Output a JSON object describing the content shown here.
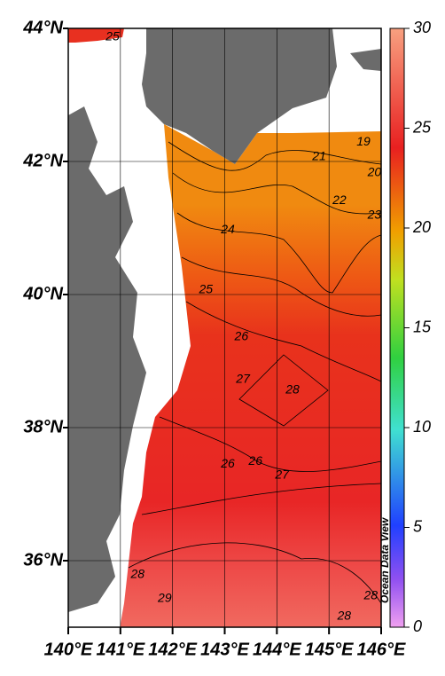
{
  "chart_data": {
    "type": "map",
    "xlim": [
      140,
      146
    ],
    "ylim": [
      35,
      44
    ],
    "xticks": [
      {
        "value": 140,
        "label": "140°E"
      },
      {
        "value": 141,
        "label": "141°E"
      },
      {
        "value": 142,
        "label": "142°E"
      },
      {
        "value": 143,
        "label": "143°E"
      },
      {
        "value": 144,
        "label": "144°E"
      },
      {
        "value": 145,
        "label": "145°E"
      },
      {
        "value": 146,
        "label": "146°E"
      }
    ],
    "yticks": [
      {
        "value": 36,
        "label": "36°N"
      },
      {
        "value": 38,
        "label": "38°N"
      },
      {
        "value": 40,
        "label": "40°N"
      },
      {
        "value": 42,
        "label": "42°N"
      },
      {
        "value": 44,
        "label": "44°N"
      }
    ],
    "grid": true,
    "colorbar": {
      "lim": [
        0,
        30
      ],
      "ticks": [
        0,
        5,
        10,
        15,
        20,
        25,
        30
      ]
    },
    "contour_labels": [
      {
        "lon": 140.85,
        "lat": 43.87,
        "value": 25
      },
      {
        "lon": 145.66,
        "lat": 42.29,
        "value": 19
      },
      {
        "lon": 144.81,
        "lat": 42.07,
        "value": 21
      },
      {
        "lon": 145.87,
        "lat": 41.83,
        "value": 20
      },
      {
        "lon": 145.2,
        "lat": 41.41,
        "value": 22
      },
      {
        "lon": 145.87,
        "lat": 41.19,
        "value": 23
      },
      {
        "lon": 143.06,
        "lat": 40.97,
        "value": 24
      },
      {
        "lon": 142.64,
        "lat": 40.07,
        "value": 25
      },
      {
        "lon": 143.32,
        "lat": 39.36,
        "value": 26
      },
      {
        "lon": 143.35,
        "lat": 38.72,
        "value": 27
      },
      {
        "lon": 144.3,
        "lat": 38.56,
        "value": 28
      },
      {
        "lon": 143.06,
        "lat": 37.45,
        "value": 26
      },
      {
        "lon": 143.59,
        "lat": 37.49,
        "value": 26
      },
      {
        "lon": 144.1,
        "lat": 37.28,
        "value": 27
      },
      {
        "lon": 141.33,
        "lat": 35.79,
        "value": 28
      },
      {
        "lon": 141.85,
        "lat": 35.43,
        "value": 29
      },
      {
        "lon": 145.8,
        "lat": 35.47,
        "value": 28
      },
      {
        "lon": 145.29,
        "lat": 35.16,
        "value": 28
      }
    ],
    "watermark": "Ocean Data View"
  }
}
